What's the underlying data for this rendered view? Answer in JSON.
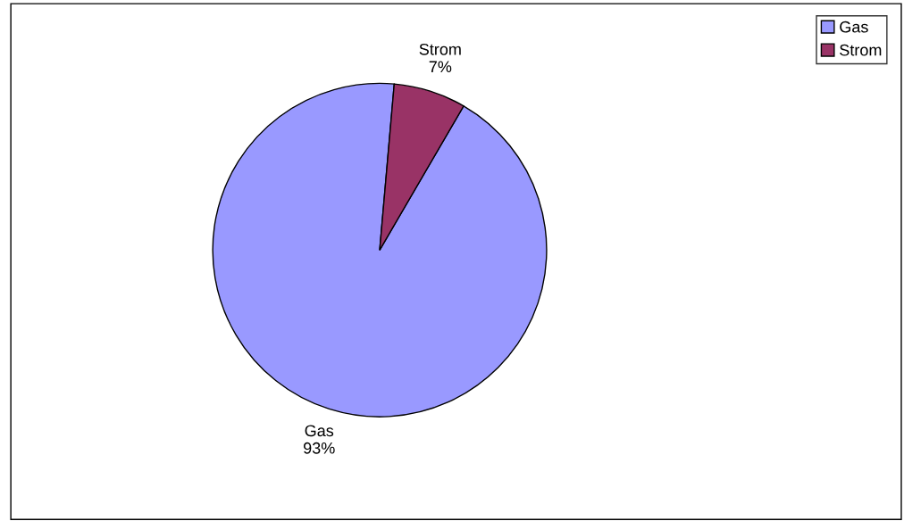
{
  "chart_data": {
    "type": "pie",
    "categories": [
      "Gas",
      "Strom"
    ],
    "values": [
      93,
      7
    ],
    "value_labels": [
      "93%",
      "7%"
    ],
    "colors": [
      "#9999ff",
      "#993366"
    ],
    "legend": "top right"
  }
}
